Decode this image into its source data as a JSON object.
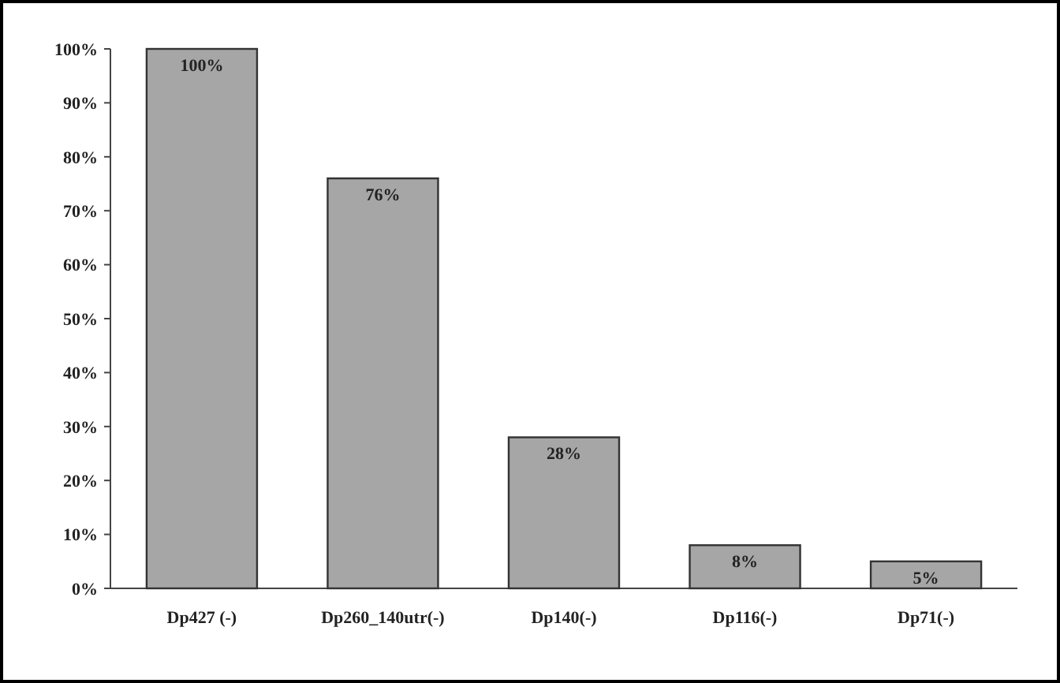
{
  "chart_data": {
    "type": "bar",
    "categories": [
      "Dp427 (-)",
      "Dp260_140utr(-)",
      "Dp140(-)",
      "Dp116(-)",
      "Dp71(-)"
    ],
    "values": [
      100,
      76,
      28,
      8,
      5
    ],
    "color": "#a6a6a6",
    "value_labels": [
      "100%",
      "76%",
      "28%",
      "8%",
      "5%"
    ],
    "ylim": [
      0,
      100
    ],
    "yticks": [
      {
        "value": 0,
        "label": "0%"
      },
      {
        "value": 10,
        "label": "10%"
      },
      {
        "value": 20,
        "label": "20%"
      },
      {
        "value": 30,
        "label": "30%"
      },
      {
        "value": 40,
        "label": "40%"
      },
      {
        "value": 50,
        "label": "50%"
      },
      {
        "value": 60,
        "label": "60%"
      },
      {
        "value": 70,
        "label": "70%"
      },
      {
        "value": 80,
        "label": "80%"
      },
      {
        "value": 90,
        "label": "90%"
      },
      {
        "value": 100,
        "label": "100%"
      }
    ],
    "grid": false
  }
}
